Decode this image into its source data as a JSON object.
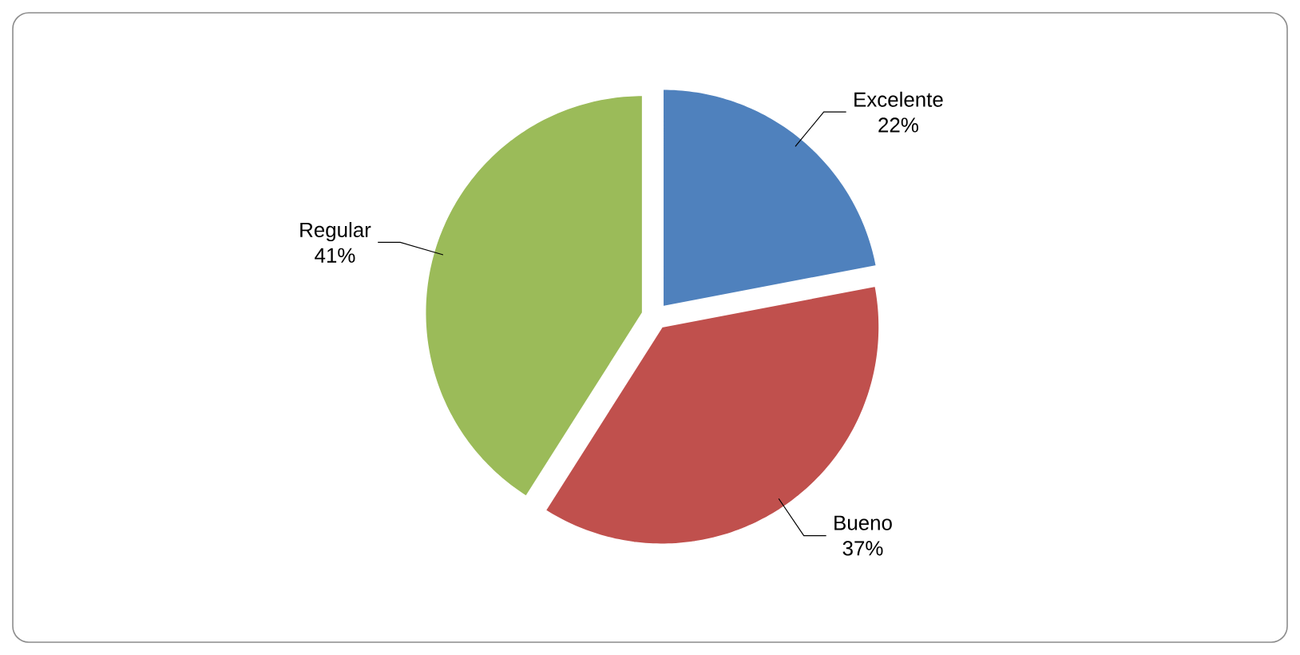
{
  "chart_data": {
    "type": "pie",
    "categories": [
      "Excelente",
      "Bueno",
      "Regular"
    ],
    "values": [
      22,
      37,
      41
    ],
    "value_labels": [
      "22%",
      "37%",
      "41%"
    ],
    "colors": [
      "#4f81bd",
      "#c0504d",
      "#9bbb59"
    ]
  }
}
